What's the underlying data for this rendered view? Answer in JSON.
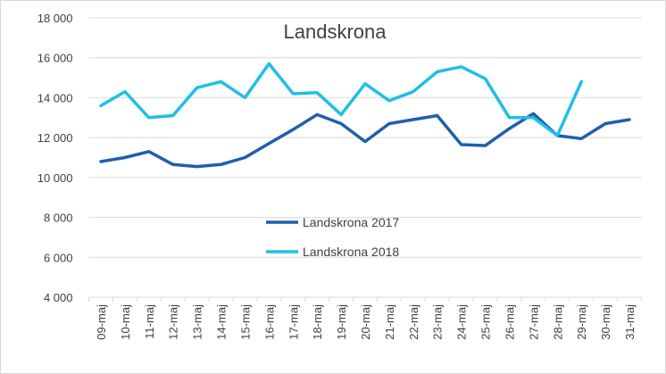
{
  "chart_data": {
    "type": "line",
    "title": "Landskrona",
    "xlabel": "",
    "ylabel": "",
    "ylim": [
      4000,
      18000
    ],
    "yticks": [
      4000,
      6000,
      8000,
      10000,
      12000,
      14000,
      16000,
      18000
    ],
    "ytick_labels": [
      "4 000",
      "6 000",
      "8 000",
      "10 000",
      "12 000",
      "14 000",
      "16 000",
      "18 000"
    ],
    "grid": true,
    "legend_placement": "center",
    "categories": [
      "09-maj",
      "10-maj",
      "11-maj",
      "12-maj",
      "13-maj",
      "14-maj",
      "15-maj",
      "16-maj",
      "17-maj",
      "18-maj",
      "19-maj",
      "20-maj",
      "21-maj",
      "22-maj",
      "23-maj",
      "24-maj",
      "25-maj",
      "26-maj",
      "27-maj",
      "28-maj",
      "29-maj",
      "30-maj",
      "31-maj"
    ],
    "series": [
      {
        "name": "Landskrona 2017",
        "color": "#1f5fae",
        "values": [
          10800,
          11000,
          11300,
          10650,
          10550,
          10650,
          11000,
          11700,
          12400,
          13150,
          12700,
          11800,
          12700,
          12900,
          13100,
          11650,
          11600,
          12450,
          13200,
          12100,
          11950,
          12700,
          12900
        ]
      },
      {
        "name": "Landskrona 2018",
        "color": "#1fbfe6",
        "values": [
          13600,
          14300,
          13000,
          13100,
          14500,
          14800,
          14000,
          15700,
          14200,
          14250,
          13150,
          14700,
          13850,
          14300,
          15300,
          15550,
          14950,
          13000,
          13000,
          12100,
          14800,
          null,
          null
        ]
      }
    ]
  }
}
